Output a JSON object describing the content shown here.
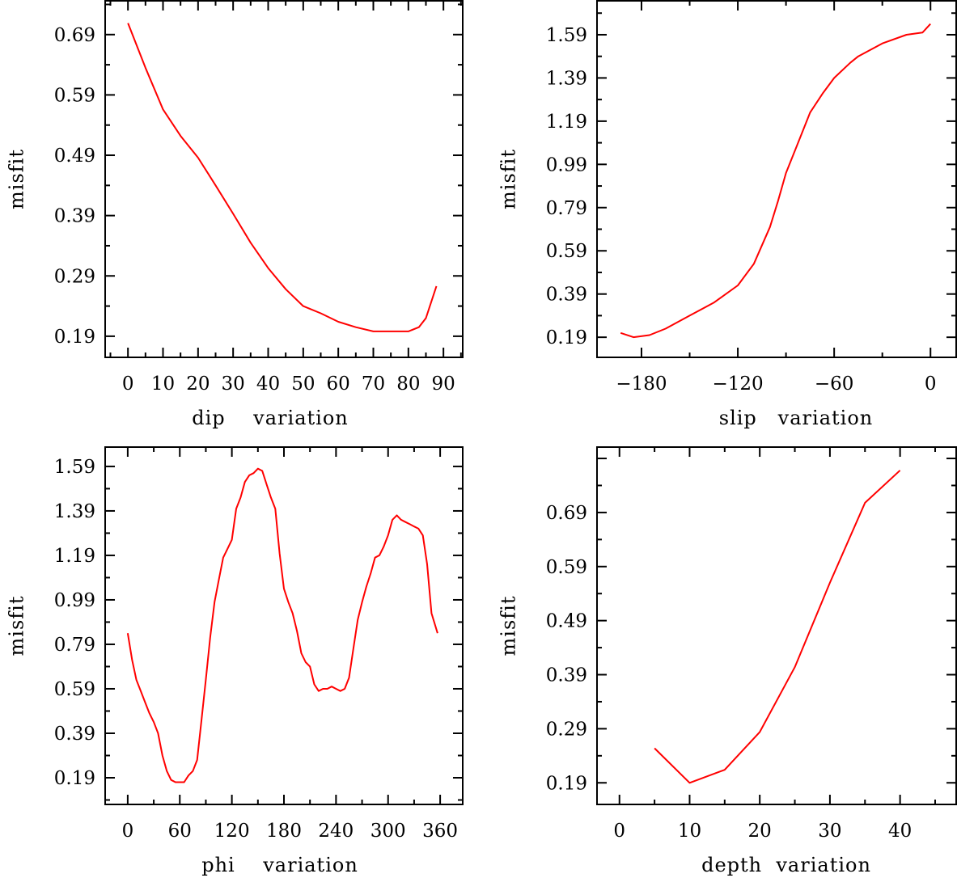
{
  "chart_data": [
    {
      "type": "line",
      "xlabel": "dip    variation",
      "ylabel": "misfit",
      "xlim": [
        -6.5,
        95.5
      ],
      "ylim": [
        0.155,
        0.746
      ],
      "xticks": [
        0,
        10,
        20,
        30,
        40,
        50,
        60,
        70,
        80,
        90
      ],
      "xtick_labels": [
        "0",
        "10",
        "20",
        "30",
        "40",
        "50",
        "60",
        "70",
        "80",
        "90"
      ],
      "yticks": [
        0.19,
        0.29,
        0.39,
        0.49,
        0.59,
        0.69
      ],
      "ytick_labels": [
        "0.19",
        "0.29",
        "0.39",
        "0.49",
        "0.59",
        "0.69"
      ],
      "color": "#ff0000",
      "x": [
        0,
        5,
        10,
        15,
        20,
        25,
        30,
        35,
        40,
        45,
        50,
        55,
        60,
        65,
        70,
        75,
        80,
        83,
        85,
        88
      ],
      "y": [
        0.709,
        0.635,
        0.566,
        0.522,
        0.486,
        0.44,
        0.393,
        0.345,
        0.303,
        0.268,
        0.24,
        0.228,
        0.214,
        0.205,
        0.198,
        0.198,
        0.198,
        0.205,
        0.22,
        0.273
      ]
    },
    {
      "type": "line",
      "xlabel": "slip   variation",
      "ylabel": "misfit",
      "xlim": [
        -207.7,
        16
      ],
      "ylim": [
        0.097,
        1.747
      ],
      "xticks": [
        -180,
        -120,
        -60,
        0
      ],
      "xtick_labels": [
        "−180",
        "−120",
        "−60",
        "0"
      ],
      "yticks": [
        0.19,
        0.39,
        0.59,
        0.79,
        0.99,
        1.19,
        1.39,
        1.59
      ],
      "ytick_labels": [
        "0.19",
        "0.39",
        "0.59",
        "0.79",
        "0.99",
        "1.19",
        "1.39",
        "1.59"
      ],
      "color": "#ff0000",
      "x": [
        -193,
        -185,
        -175,
        -165,
        -150,
        -135,
        -120,
        -110,
        -100,
        -95,
        -90,
        -83,
        -75,
        -67,
        -60,
        -50,
        -45,
        -30,
        -15,
        -5,
        0
      ],
      "y": [
        0.21,
        0.19,
        0.2,
        0.23,
        0.29,
        0.35,
        0.43,
        0.53,
        0.7,
        0.82,
        0.95,
        1.08,
        1.23,
        1.32,
        1.39,
        1.46,
        1.49,
        1.55,
        1.59,
        1.6,
        1.64
      ]
    },
    {
      "type": "line",
      "xlabel": "phi    variation",
      "ylabel": "misfit",
      "xlim": [
        -26,
        386
      ],
      "ylim": [
        0.07,
        1.677
      ],
      "xticks": [
        0,
        60,
        120,
        180,
        240,
        300,
        360
      ],
      "xtick_labels": [
        "0",
        "60",
        "120",
        "180",
        "240",
        "300",
        "360"
      ],
      "yticks": [
        0.19,
        0.39,
        0.59,
        0.79,
        0.99,
        1.19,
        1.39,
        1.59
      ],
      "ytick_labels": [
        "0.19",
        "0.39",
        "0.59",
        "0.79",
        "0.99",
        "1.19",
        "1.39",
        "1.59"
      ],
      "color": "#ff0000",
      "x": [
        0,
        5,
        10,
        15,
        20,
        25,
        30,
        35,
        40,
        45,
        50,
        55,
        60,
        65,
        70,
        75,
        80,
        85,
        90,
        95,
        100,
        105,
        110,
        115,
        120,
        125,
        130,
        135,
        140,
        145,
        150,
        155,
        160,
        165,
        170,
        175,
        180,
        185,
        190,
        195,
        200,
        205,
        210,
        215,
        220,
        225,
        230,
        235,
        240,
        245,
        250,
        255,
        260,
        265,
        270,
        275,
        280,
        285,
        290,
        295,
        300,
        305,
        310,
        315,
        320,
        325,
        330,
        335,
        340,
        345,
        350,
        357
      ],
      "y": [
        0.84,
        0.72,
        0.63,
        0.58,
        0.53,
        0.48,
        0.44,
        0.39,
        0.29,
        0.22,
        0.18,
        0.17,
        0.17,
        0.17,
        0.2,
        0.22,
        0.27,
        0.45,
        0.63,
        0.82,
        0.98,
        1.08,
        1.18,
        1.22,
        1.26,
        1.4,
        1.45,
        1.52,
        1.55,
        1.56,
        1.58,
        1.57,
        1.51,
        1.45,
        1.4,
        1.2,
        1.04,
        0.98,
        0.93,
        0.85,
        0.75,
        0.71,
        0.69,
        0.61,
        0.58,
        0.59,
        0.59,
        0.6,
        0.59,
        0.58,
        0.59,
        0.64,
        0.77,
        0.9,
        0.98,
        1.05,
        1.11,
        1.18,
        1.19,
        1.23,
        1.28,
        1.35,
        1.37,
        1.35,
        1.34,
        1.33,
        1.32,
        1.31,
        1.28,
        1.15,
        0.93,
        0.84
      ]
    },
    {
      "type": "line",
      "xlabel": "depth  variation",
      "ylabel": "misfit",
      "xlim": [
        -3.2,
        48
      ],
      "ylim": [
        0.15,
        0.811
      ],
      "xticks": [
        0,
        10,
        20,
        30,
        40
      ],
      "xtick_labels": [
        "0",
        "10",
        "20",
        "30",
        "40"
      ],
      "yticks": [
        0.19,
        0.29,
        0.39,
        0.49,
        0.59,
        0.69
      ],
      "ytick_labels": [
        "0.19",
        "0.29",
        "0.39",
        "0.49",
        "0.59",
        "0.69"
      ],
      "color": "#ff0000",
      "x": [
        5,
        10,
        15,
        20,
        25,
        30,
        35,
        40
      ],
      "y": [
        0.254,
        0.19,
        0.214,
        0.284,
        0.404,
        0.56,
        0.708,
        0.768
      ]
    }
  ]
}
